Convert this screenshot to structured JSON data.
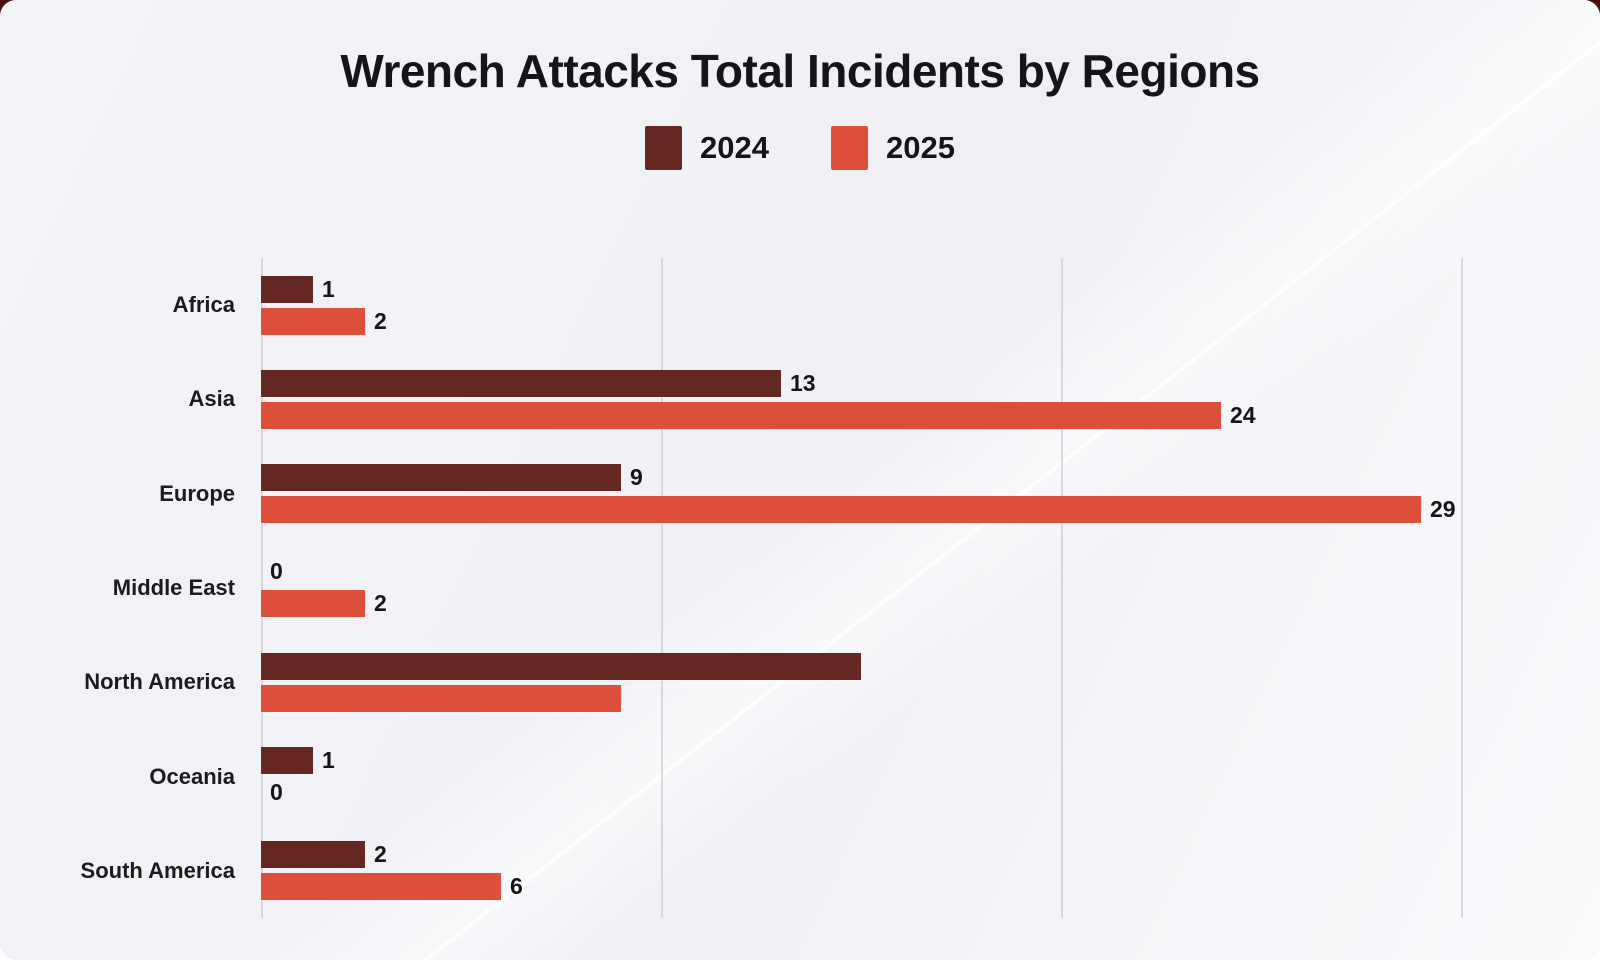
{
  "page": {
    "title": "Wrench Attacks Total Incidents by Regions"
  },
  "legend": {
    "items": [
      {
        "label": "2024",
        "color": "#652721"
      },
      {
        "label": "2025",
        "color": "#dd4f3b"
      }
    ]
  },
  "colors": {
    "series_2024": "#652721",
    "series_2025": "#dd4f3b",
    "card_background": "#f1f3f7",
    "gridline": "#d7d8dc",
    "text": "#141518",
    "page_behind_top": "#4a120d"
  },
  "chart_data": {
    "type": "bar",
    "orientation": "horizontal",
    "title": "Wrench Attacks Total Incidents by Regions",
    "categories": [
      "Africa",
      "Asia",
      "Europe",
      "Middle East",
      "North America",
      "Oceania",
      "South America"
    ],
    "series": [
      {
        "name": "2024",
        "values": [
          1,
          13,
          9,
          0,
          15,
          1,
          2
        ],
        "data_labels": [
          "1",
          "13",
          "9",
          "0",
          "",
          "1",
          "2"
        ]
      },
      {
        "name": "2025",
        "values": [
          2,
          24,
          29,
          2,
          9,
          0,
          6
        ],
        "data_labels": [
          "2",
          "24",
          "29",
          "2",
          "",
          "0",
          "6"
        ]
      }
    ],
    "xlabel": "",
    "ylabel": "",
    "xlim": [
      0,
      30
    ],
    "gridlines_x": [
      0,
      10,
      20,
      30
    ],
    "grid": true,
    "x_tick_labels_shown": false,
    "legend_position": "top-center"
  }
}
